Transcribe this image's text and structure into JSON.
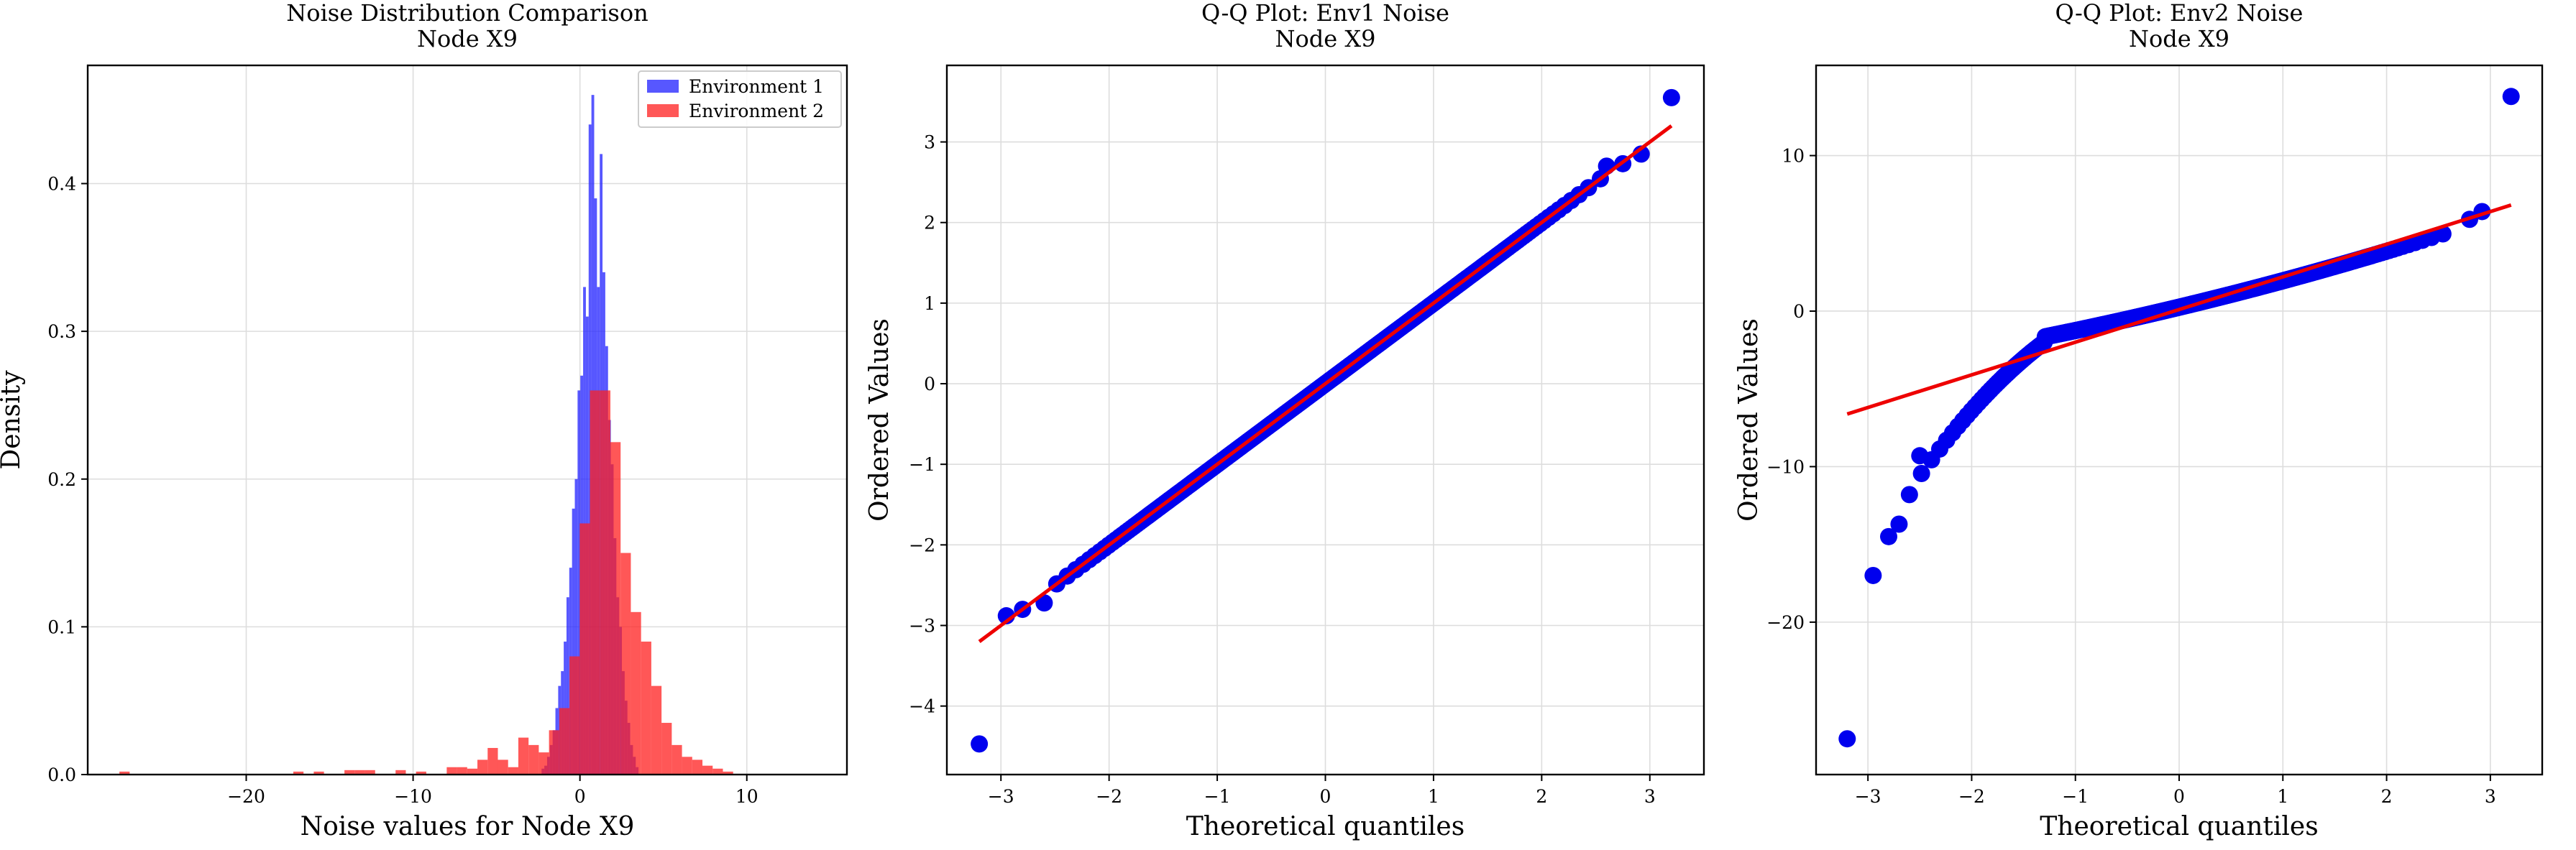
{
  "chart_data": [
    {
      "type": "histogram",
      "title": "Noise Distribution Comparison",
      "subtitle": "Node X9",
      "xlabel": "Noise values for Node X9",
      "ylabel": "Density",
      "xlim": [
        -29.5,
        16
      ],
      "ylim": [
        0,
        0.48
      ],
      "xticks": [
        -20,
        -10,
        0,
        10
      ],
      "yticks": [
        0.0,
        0.1,
        0.2,
        0.3,
        0.4
      ],
      "grid": true,
      "legend_position": "top-right",
      "series": [
        {
          "name": "Environment 1",
          "color": "#1f1fff",
          "opacity": 0.75,
          "bin_width": 0.166,
          "bin_start": -2.3,
          "values": [
            0.004,
            0.006,
            0.012,
            0.02,
            0.03,
            0.045,
            0.06,
            0.07,
            0.09,
            0.12,
            0.14,
            0.18,
            0.2,
            0.26,
            0.27,
            0.33,
            0.31,
            0.44,
            0.46,
            0.39,
            0.33,
            0.42,
            0.34,
            0.29,
            0.24,
            0.21,
            0.16,
            0.12,
            0.1,
            0.07,
            0.05,
            0.035,
            0.02,
            0.012,
            0.005
          ]
        },
        {
          "name": "Environment 2",
          "color": "#ff1f1f",
          "opacity": 0.75,
          "bin_width": 0.613,
          "bin_start": -27.6,
          "values": [
            0.002,
            0,
            0,
            0,
            0,
            0,
            0,
            0,
            0,
            0,
            0,
            0,
            0,
            0,
            0,
            0,
            0,
            0.002,
            0,
            0.002,
            0,
            0,
            0.003,
            0.003,
            0.003,
            0,
            0,
            0.003,
            0,
            0.002,
            0,
            0,
            0.005,
            0.005,
            0.004,
            0.01,
            0.018,
            0.01,
            0.005,
            0.025,
            0.02,
            0.015,
            0.03,
            0.045,
            0.08,
            0.17,
            0.26,
            0.26,
            0.225,
            0.15,
            0.11,
            0.09,
            0.06,
            0.035,
            0.02,
            0.012,
            0.01,
            0.006,
            0.004,
            0.002
          ]
        }
      ]
    },
    {
      "type": "scatter",
      "title": "Q-Q Plot: Env1 Noise",
      "subtitle": "Node X9",
      "xlabel": "Theoretical quantiles",
      "ylabel": "Ordered Values",
      "xlim": [
        -3.5,
        3.5
      ],
      "ylim": [
        -4.85,
        3.95
      ],
      "xticks": [
        -3,
        -2,
        -1,
        0,
        1,
        2,
        3
      ],
      "yticks": [
        -4,
        -3,
        -2,
        -1,
        0,
        1,
        2,
        3
      ],
      "grid": true,
      "n_points": 1000,
      "point_color": "#0000ee",
      "fit_line": {
        "color": "#ee0000",
        "slope": 1.0,
        "intercept": 0.0
      },
      "tail_points": [
        [
          -3.2,
          -4.47
        ],
        [
          -2.95,
          -2.88
        ],
        [
          -2.8,
          -2.8
        ],
        [
          -2.6,
          -2.72
        ],
        [
          2.6,
          2.7
        ],
        [
          2.75,
          2.73
        ],
        [
          2.92,
          2.85
        ],
        [
          3.2,
          3.55
        ]
      ]
    },
    {
      "type": "scatter",
      "title": "Q-Q Plot: Env2 Noise",
      "subtitle": "Node X9",
      "xlabel": "Theoretical quantiles",
      "ylabel": "Ordered Values",
      "xlim": [
        -3.5,
        3.5
      ],
      "ylim": [
        -29.8,
        15.8
      ],
      "xticks": [
        -3,
        -2,
        -1,
        0,
        1,
        2,
        3
      ],
      "yticks": [
        -20,
        -10,
        0,
        10
      ],
      "grid": true,
      "n_points": 1000,
      "point_color": "#0000ee",
      "fit_line": {
        "color": "#ee0000",
        "slope": 2.1,
        "intercept": 0.1
      },
      "tail_points": [
        [
          -3.2,
          -27.5
        ],
        [
          -2.95,
          -17.0
        ],
        [
          -2.8,
          -14.5
        ],
        [
          -2.7,
          -13.7
        ],
        [
          -2.6,
          -11.8
        ],
        [
          -2.5,
          -9.3
        ],
        [
          2.8,
          5.9
        ],
        [
          2.92,
          6.4
        ],
        [
          3.2,
          13.8
        ]
      ]
    }
  ]
}
